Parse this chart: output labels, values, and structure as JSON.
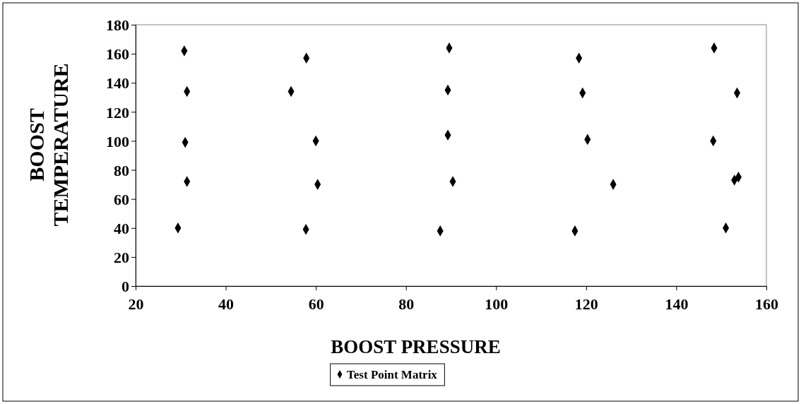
{
  "chart_data": {
    "type": "scatter",
    "xlabel": "BOOST PRESSURE",
    "ylabel": "BOOST TEMPERATURE",
    "xlim": [
      20,
      160
    ],
    "ylim": [
      0,
      180
    ],
    "xticks": [
      20,
      40,
      60,
      80,
      100,
      120,
      140,
      160
    ],
    "yticks": [
      0,
      20,
      40,
      60,
      80,
      100,
      120,
      140,
      160,
      180
    ],
    "grid": false,
    "legend": "bottom",
    "marker": "diamond",
    "series": [
      {
        "name": "Test Point Matrix",
        "color": "#000000",
        "x": [
          29.4,
          30.8,
          31.4,
          31.0,
          31.4,
          57.9,
          54.5,
          60.0,
          60.4,
          57.8,
          89.6,
          89.3,
          89.3,
          90.4,
          87.6,
          118.4,
          119.2,
          120.3,
          126.0,
          117.5,
          148.4,
          153.5,
          148.2,
          152.9,
          153.8,
          151.0
        ],
        "values": [
          40,
          162,
          134,
          99,
          72,
          157,
          134,
          100,
          70,
          39,
          164,
          135,
          104,
          72,
          38,
          157,
          133,
          101,
          70,
          38,
          164,
          133,
          100,
          73,
          75,
          40
        ]
      }
    ]
  }
}
